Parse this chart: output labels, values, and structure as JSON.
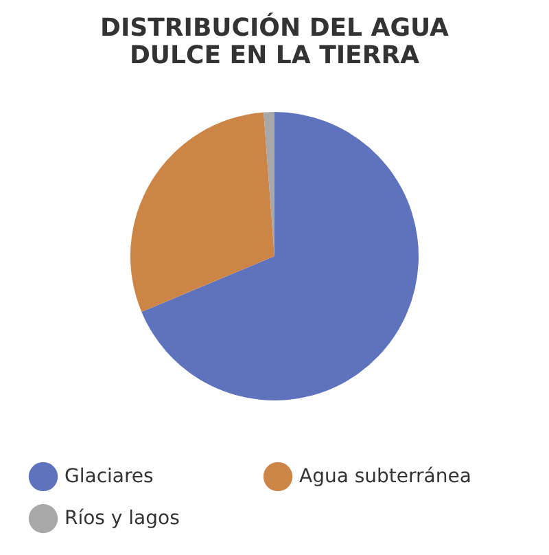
{
  "chart_data": {
    "type": "pie",
    "title": "DISTRIBUCIÓN DEL AGUA\nDULCE EN LA TIERRA",
    "categories": [
      "Glaciares",
      "Agua subterránea",
      "Ríos y lagos"
    ],
    "values": [
      68.7,
      30.1,
      1.2
    ],
    "colors": [
      "#5f72bd",
      "#cc8447",
      "#a8a8a8"
    ],
    "legend": "bottom"
  }
}
